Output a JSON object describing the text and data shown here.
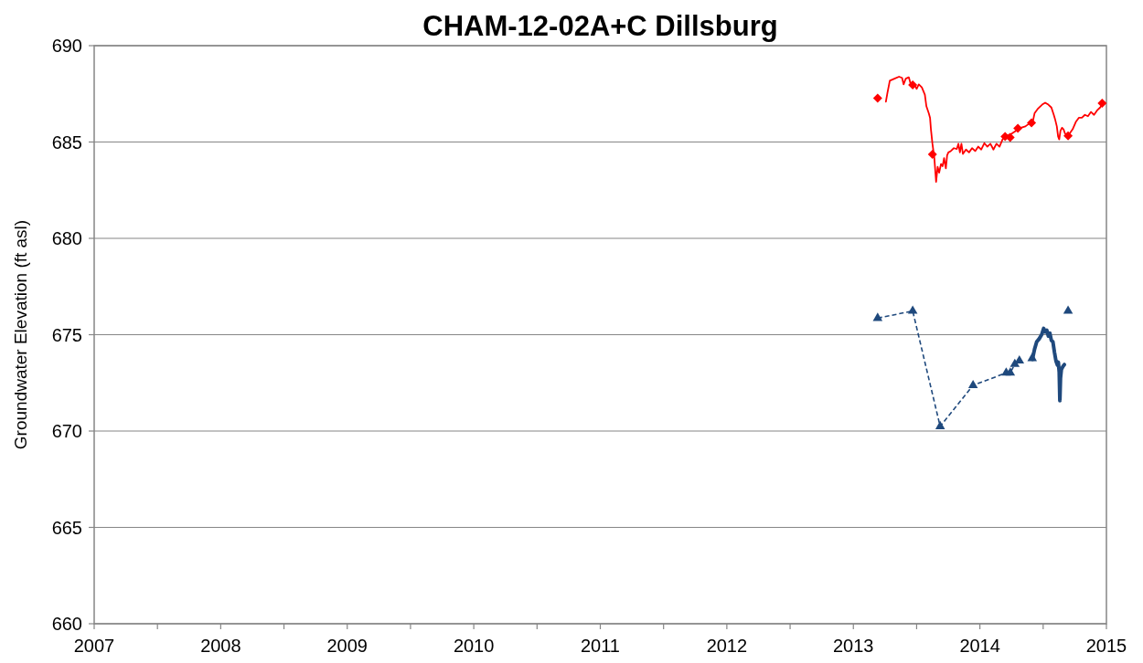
{
  "chart_data": {
    "type": "line",
    "title": "CHAM-12-02A+C Dillsburg",
    "ylabel": "Groundwater Elevation (ft asl)",
    "xlim": [
      2007,
      2015
    ],
    "xticks": [
      2007,
      {
        "value": 2007.5,
        "label": null
      },
      2008,
      {
        "value": 2008.5,
        "label": null
      },
      2009,
      {
        "value": 2009.5,
        "label": null
      },
      2010,
      {
        "value": 2010.5,
        "label": null
      },
      2011,
      {
        "value": 2011.5,
        "label": null
      },
      2012,
      {
        "value": 2012.5,
        "label": null
      },
      2013,
      {
        "value": 2013.5,
        "label": null
      },
      2014,
      {
        "value": 2014.5,
        "label": null
      },
      2015
    ],
    "ylim": [
      660,
      690
    ],
    "yticks": [
      660,
      665,
      670,
      675,
      680,
      685,
      690
    ],
    "grid": "y",
    "series": [
      {
        "color": "#ff0000",
        "x": [
          2013.257,
          2013.269,
          2013.288,
          2013.325,
          2013.361,
          2013.385,
          2013.397,
          2013.414,
          2013.438,
          2013.457,
          2013.481,
          2013.5,
          2013.517,
          2013.541,
          2013.565,
          2013.577,
          2013.596,
          2013.606,
          2013.613,
          2013.625,
          2013.64,
          2013.654,
          2013.666,
          2013.678,
          2013.693,
          2013.705,
          2013.717,
          2013.731,
          2013.741,
          2013.751,
          2013.77,
          2013.794,
          2013.818,
          2013.83,
          2013.842,
          2013.854,
          2013.866,
          2013.89,
          2013.914,
          2013.938,
          2013.963,
          2013.987,
          2014.011,
          2014.035,
          2014.059,
          2014.083,
          2014.107,
          2014.131,
          2014.155,
          2014.179,
          2014.203,
          2014.227,
          2014.252,
          2014.288,
          2014.324,
          2014.36,
          2014.396,
          2014.42,
          2014.432,
          2014.456,
          2014.492,
          2014.516,
          2014.541,
          2014.565,
          2014.584,
          2014.594,
          2014.608,
          2014.618,
          2014.627,
          2014.637,
          2014.649,
          2014.661,
          2014.673,
          2014.69,
          2014.709,
          2014.733,
          2014.758,
          2014.782,
          2014.806,
          2014.83,
          2014.854,
          2014.878,
          2014.902,
          2014.926,
          2014.95,
          2014.974
        ],
        "values": [
          687.09,
          687.54,
          688.18,
          688.29,
          688.39,
          688.33,
          687.99,
          688.29,
          688.36,
          687.91,
          687.99,
          687.76,
          687.99,
          687.84,
          687.46,
          686.86,
          686.49,
          686.26,
          685.66,
          684.91,
          684.16,
          682.93,
          683.71,
          683.41,
          683.86,
          683.74,
          684.16,
          683.63,
          684.31,
          684.46,
          684.53,
          684.68,
          684.64,
          684.91,
          684.46,
          684.91,
          684.38,
          684.61,
          684.46,
          684.68,
          684.53,
          684.76,
          684.61,
          684.94,
          684.76,
          684.91,
          684.61,
          684.91,
          684.76,
          685.14,
          685.29,
          685.36,
          685.44,
          685.59,
          685.74,
          685.81,
          685.99,
          686.11,
          686.49,
          686.71,
          686.94,
          687.04,
          686.94,
          686.79,
          686.41,
          686.19,
          685.81,
          685.29,
          685.14,
          685.59,
          685.74,
          685.66,
          685.44,
          685.33,
          685.44,
          685.66,
          686.04,
          686.26,
          686.26,
          686.41,
          686.34,
          686.56,
          686.41,
          686.64,
          686.79,
          687.01
        ]
      },
      {
        "type": "scatter",
        "color": "#ff0000",
        "marker": "diamond",
        "x": [
          2013.192,
          2013.469,
          2013.625,
          2014.199,
          2014.239,
          2014.3,
          2014.408,
          2014.697,
          2014.966
        ],
        "values": [
          687.27,
          687.96,
          684.36,
          685.29,
          685.24,
          685.71,
          685.99,
          685.32,
          687.01
        ]
      },
      {
        "color": "#1f497d",
        "x": [
          2014.415,
          2014.432,
          2014.449,
          2014.468,
          2014.488,
          2014.504,
          2014.516,
          2014.529,
          2014.541,
          2014.553,
          2014.565,
          2014.577,
          2014.589,
          2014.601,
          2014.613,
          2014.62,
          2014.627,
          2014.632,
          2014.637,
          2014.644,
          2014.656,
          2014.668
        ],
        "values": [
          673.72,
          674.25,
          674.63,
          674.78,
          675.0,
          675.33,
          675.15,
          675.23,
          674.93,
          675.08,
          674.7,
          674.63,
          674.1,
          673.65,
          673.42,
          673.57,
          673.05,
          671.58,
          672.75,
          673.2,
          673.35,
          673.45
        ]
      },
      {
        "color": "#1f497d",
        "marker": "triangle",
        "line_style": "dashed",
        "x": [
          2013.192,
          2013.469,
          2013.686,
          2013.946,
          2014.208,
          2014.24,
          2014.276,
          2014.312,
          2014.36,
          2014.413,
          2014.55,
          2014.697
        ],
        "values": [
          675.86,
          676.23,
          670.24,
          672.37,
          673.02,
          673.02,
          673.47,
          673.65,
          null,
          673.77,
          null,
          676.23
        ]
      }
    ]
  }
}
